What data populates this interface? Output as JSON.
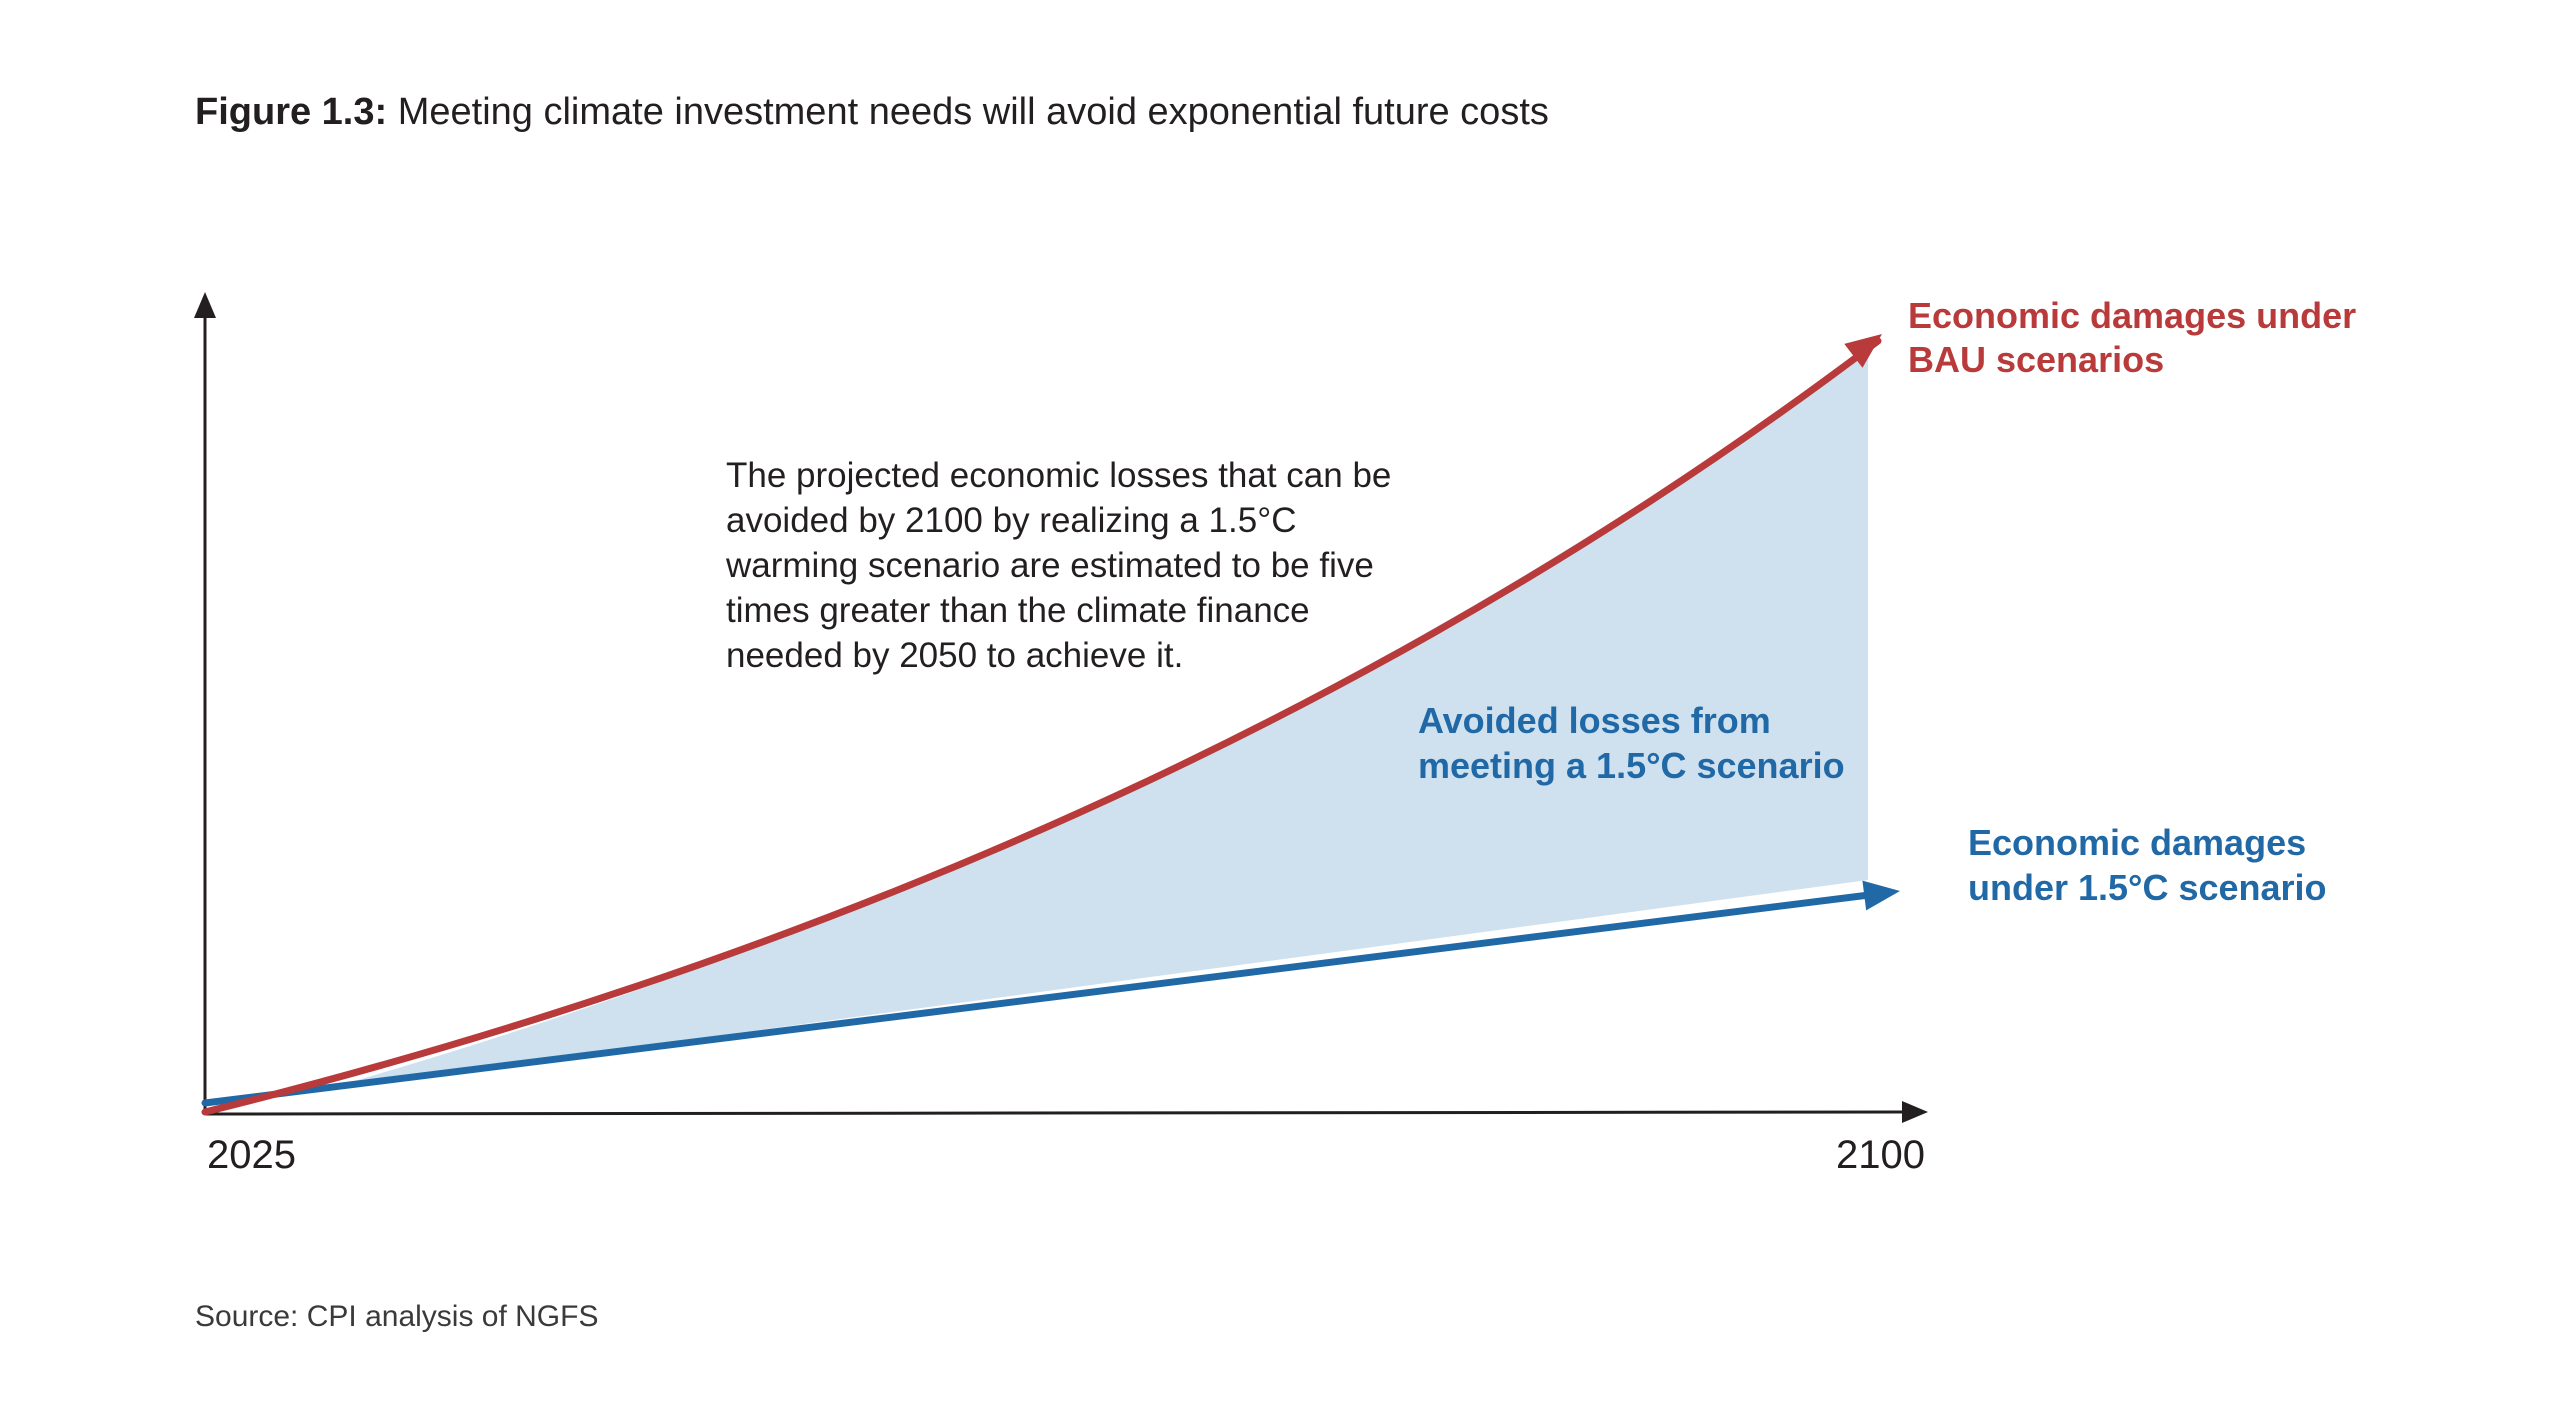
{
  "figure": {
    "label": "Figure 1.3:",
    "title": "Meeting climate investment needs will avoid exponential future costs",
    "source": "Source: CPI analysis of NGFS"
  },
  "chart_data": {
    "type": "area",
    "title": "Meeting climate investment needs will avoid exponential future costs",
    "xlabel": "",
    "ylabel": "",
    "x_ticks": [
      "2025",
      "2100"
    ],
    "xlim": [
      2025,
      2100
    ],
    "grid": false,
    "series": [
      {
        "name": "Economic damages under BAU scenarios",
        "label_lines": [
          "Economic damages under",
          "BAU scenarios"
        ],
        "color": "#b83a3a",
        "trend": "exponential",
        "start_year": 2025,
        "end_year": 2100
      },
      {
        "name": "Economic damages under 1.5°C scenario",
        "label_lines": [
          "Economic damages",
          "under 1.5°C scenario"
        ],
        "color": "#2169a6",
        "trend": "linear",
        "start_year": 2025,
        "end_year": 2100
      }
    ],
    "shaded_region": {
      "label_lines": [
        "Avoided losses from",
        "meeting a 1.5°C scenario"
      ],
      "color": "#cfe1ef",
      "label_color": "#2169a6"
    },
    "annotation": {
      "lines": [
        "The projected economic losses that can be",
        "avoided by 2100 by realizing a 1.5°C",
        "warming scenario are estimated to be five",
        "times greater than the climate finance",
        "needed by 2050 to achieve it."
      ]
    }
  }
}
